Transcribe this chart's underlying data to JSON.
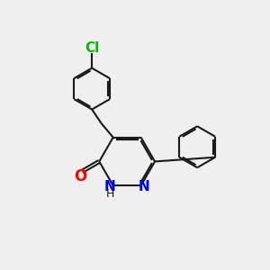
{
  "background_color": "#efefef",
  "bond_color": "#1a1a1a",
  "N_color": "#0000ff",
  "O_color": "#ff0000",
  "Cl_color": "#00bb00",
  "line_width": 1.5,
  "figsize": [
    3.0,
    3.0
  ],
  "dpi": 100,
  "xlim": [
    0,
    10
  ],
  "ylim": [
    0,
    10
  ]
}
